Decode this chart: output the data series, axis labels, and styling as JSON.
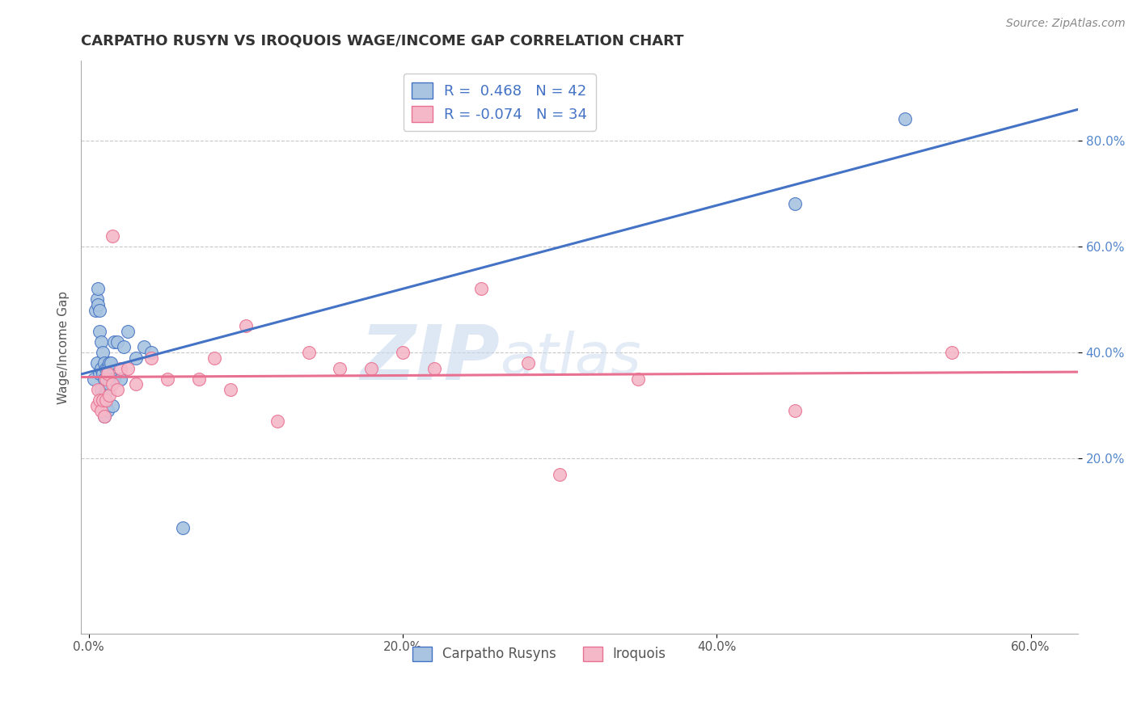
{
  "title": "CARPATHO RUSYN VS IROQUOIS WAGE/INCOME GAP CORRELATION CHART",
  "source_text": "Source: ZipAtlas.com",
  "ylabel": "Wage/Income Gap",
  "legend_bottom": [
    "Carpatho Rusyns",
    "Iroquois"
  ],
  "r_blue": 0.468,
  "n_blue": 42,
  "r_pink": -0.074,
  "n_pink": 34,
  "xlim": [
    -0.005,
    0.63
  ],
  "ylim": [
    -0.13,
    0.95
  ],
  "xticklabels": [
    "0.0%",
    "20.0%",
    "40.0%",
    "60.0%"
  ],
  "yticklabels": [
    "20.0%",
    "40.0%",
    "60.0%",
    "80.0%"
  ],
  "ytick_vals": [
    0.2,
    0.4,
    0.6,
    0.8
  ],
  "xtick_vals": [
    0.0,
    0.2,
    0.4,
    0.6
  ],
  "grid_color": "#c8c8c8",
  "blue_color": "#a8c4e0",
  "pink_color": "#f5b8c8",
  "line_blue": "#4472c4",
  "line_pink": "#e87090",
  "watermark_zip": "ZIP",
  "watermark_atlas": "atlas",
  "blue_points_x": [
    0.003,
    0.004,
    0.005,
    0.005,
    0.006,
    0.006,
    0.007,
    0.007,
    0.007,
    0.008,
    0.008,
    0.008,
    0.009,
    0.009,
    0.009,
    0.01,
    0.01,
    0.01,
    0.01,
    0.011,
    0.011,
    0.011,
    0.012,
    0.012,
    0.012,
    0.013,
    0.013,
    0.014,
    0.015,
    0.015,
    0.016,
    0.016,
    0.018,
    0.02,
    0.022,
    0.025,
    0.03,
    0.035,
    0.04,
    0.06,
    0.45,
    0.52
  ],
  "blue_points_y": [
    0.35,
    0.48,
    0.5,
    0.38,
    0.49,
    0.52,
    0.44,
    0.48,
    0.36,
    0.33,
    0.37,
    0.42,
    0.31,
    0.36,
    0.4,
    0.28,
    0.32,
    0.35,
    0.38,
    0.3,
    0.33,
    0.37,
    0.29,
    0.33,
    0.37,
    0.34,
    0.38,
    0.38,
    0.3,
    0.35,
    0.35,
    0.42,
    0.42,
    0.35,
    0.41,
    0.44,
    0.39,
    0.41,
    0.4,
    0.07,
    0.68,
    0.84
  ],
  "pink_points_x": [
    0.005,
    0.006,
    0.007,
    0.008,
    0.009,
    0.01,
    0.011,
    0.011,
    0.012,
    0.013,
    0.015,
    0.015,
    0.018,
    0.02,
    0.025,
    0.03,
    0.04,
    0.05,
    0.07,
    0.08,
    0.09,
    0.1,
    0.12,
    0.14,
    0.16,
    0.18,
    0.2,
    0.22,
    0.25,
    0.28,
    0.3,
    0.35,
    0.45,
    0.55
  ],
  "pink_points_y": [
    0.3,
    0.33,
    0.31,
    0.29,
    0.31,
    0.28,
    0.31,
    0.35,
    0.36,
    0.32,
    0.62,
    0.34,
    0.33,
    0.37,
    0.37,
    0.34,
    0.39,
    0.35,
    0.35,
    0.39,
    0.33,
    0.45,
    0.27,
    0.4,
    0.37,
    0.37,
    0.4,
    0.37,
    0.52,
    0.38,
    0.17,
    0.35,
    0.29,
    0.4
  ]
}
